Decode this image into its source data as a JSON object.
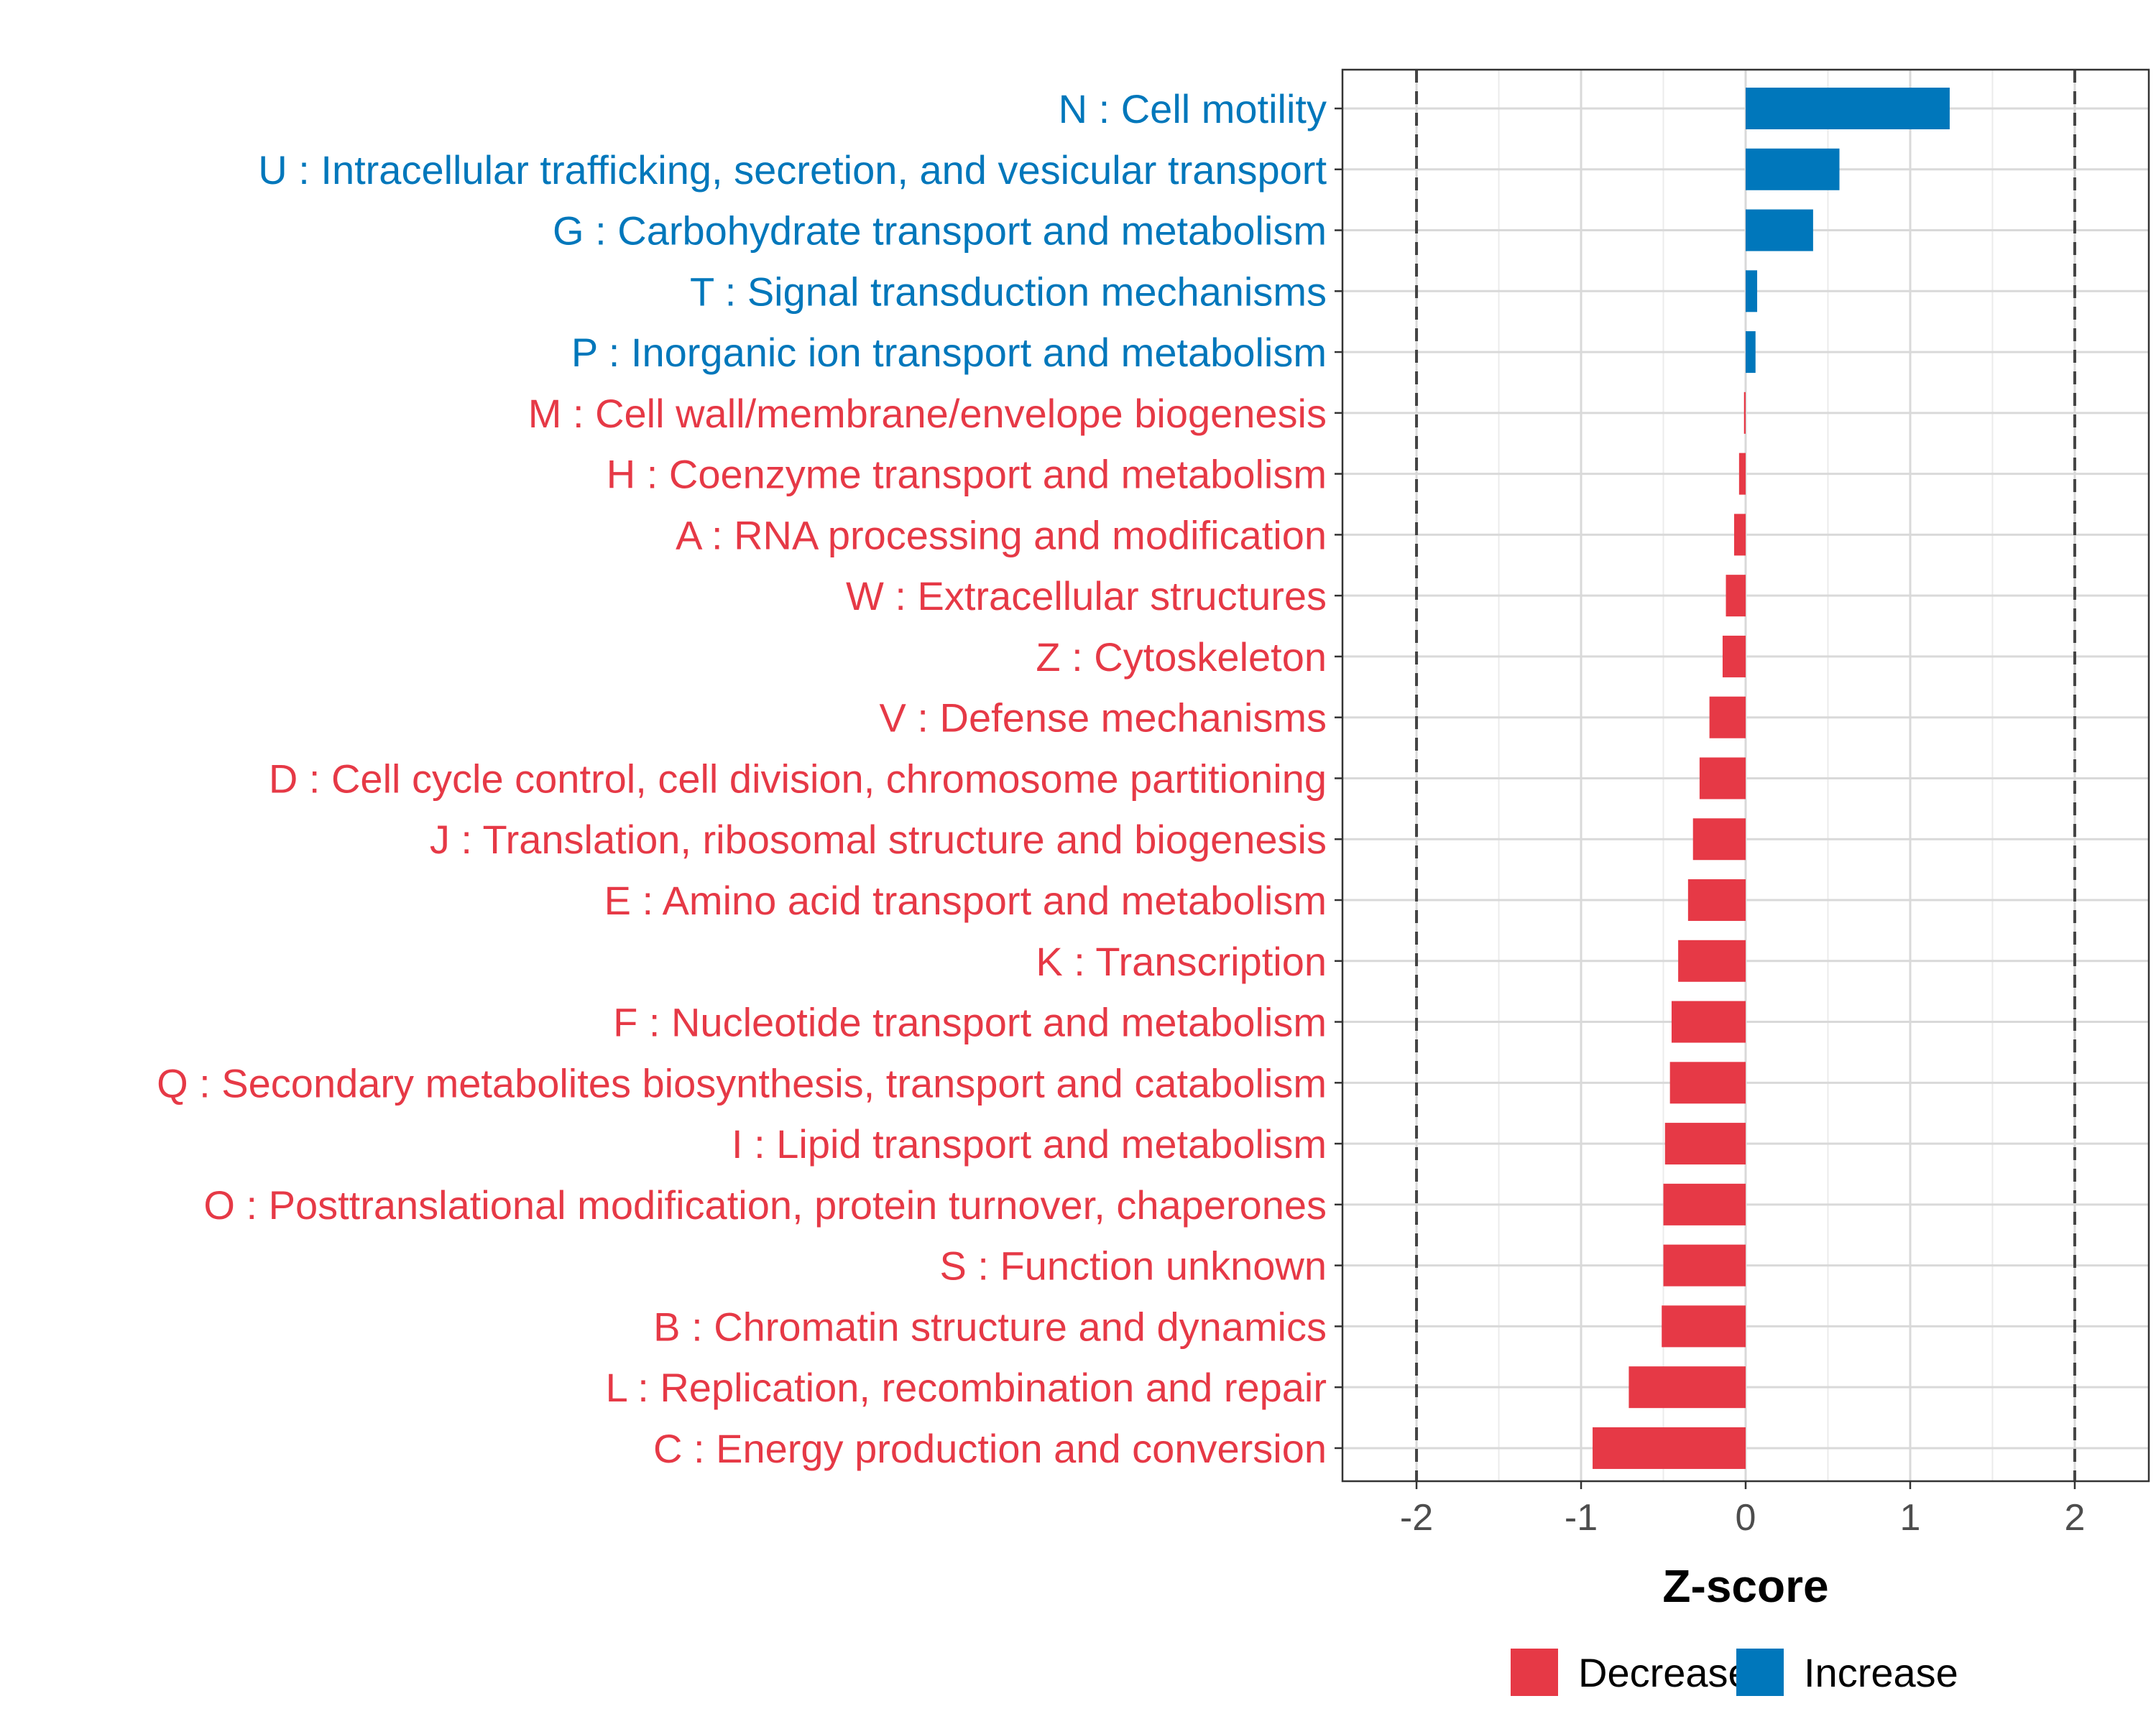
{
  "chart_data": {
    "type": "bar",
    "orientation": "horizontal",
    "xlabel": "Z-score",
    "xlim": [
      -2.45,
      2.45
    ],
    "xticks": [
      -2,
      -1,
      0,
      1,
      2
    ],
    "xtick_labels": [
      "-2",
      "-1",
      "0",
      "1",
      "2"
    ],
    "reference_lines": [
      -2,
      2
    ],
    "grid": true,
    "legend_position": "bottom",
    "colors": {
      "Decrease": "#e63946",
      "Increase": "#0077bb"
    },
    "legend": [
      {
        "name": "Decrease",
        "color": "#e63946"
      },
      {
        "name": "Increase",
        "color": "#0077bb"
      }
    ],
    "categories": [
      "N : Cell motility",
      "U : Intracellular trafficking, secretion, and vesicular transport",
      "G : Carbohydrate transport and metabolism",
      "T : Signal transduction mechanisms",
      "P : Inorganic ion transport and metabolism",
      "M : Cell wall/membrane/envelope biogenesis",
      "H : Coenzyme transport and metabolism",
      "A : RNA processing and modification",
      "W : Extracellular structures",
      "Z : Cytoskeleton",
      "V : Defense mechanisms",
      "D : Cell cycle control, cell division, chromosome partitioning",
      "J : Translation, ribosomal structure and biogenesis",
      "E : Amino acid transport and metabolism",
      "K : Transcription",
      "F : Nucleotide transport and metabolism",
      "Q : Secondary metabolites biosynthesis, transport and catabolism",
      "I : Lipid transport and metabolism",
      "O : Posttranslational modification, protein turnover, chaperones",
      "S : Function unknown",
      "B : Chromatin structure and dynamics",
      "L : Replication, recombination and repair",
      "C : Energy production and conversion"
    ],
    "values": [
      1.24,
      0.57,
      0.41,
      0.07,
      0.06,
      -0.01,
      -0.04,
      -0.07,
      -0.12,
      -0.14,
      -0.22,
      -0.28,
      -0.32,
      -0.35,
      -0.41,
      -0.45,
      -0.46,
      -0.49,
      -0.5,
      -0.5,
      -0.51,
      -0.71,
      -0.93
    ],
    "groups": [
      "Increase",
      "Increase",
      "Increase",
      "Increase",
      "Increase",
      "Decrease",
      "Decrease",
      "Decrease",
      "Decrease",
      "Decrease",
      "Decrease",
      "Decrease",
      "Decrease",
      "Decrease",
      "Decrease",
      "Decrease",
      "Decrease",
      "Decrease",
      "Decrease",
      "Decrease",
      "Decrease",
      "Decrease",
      "Decrease"
    ]
  }
}
